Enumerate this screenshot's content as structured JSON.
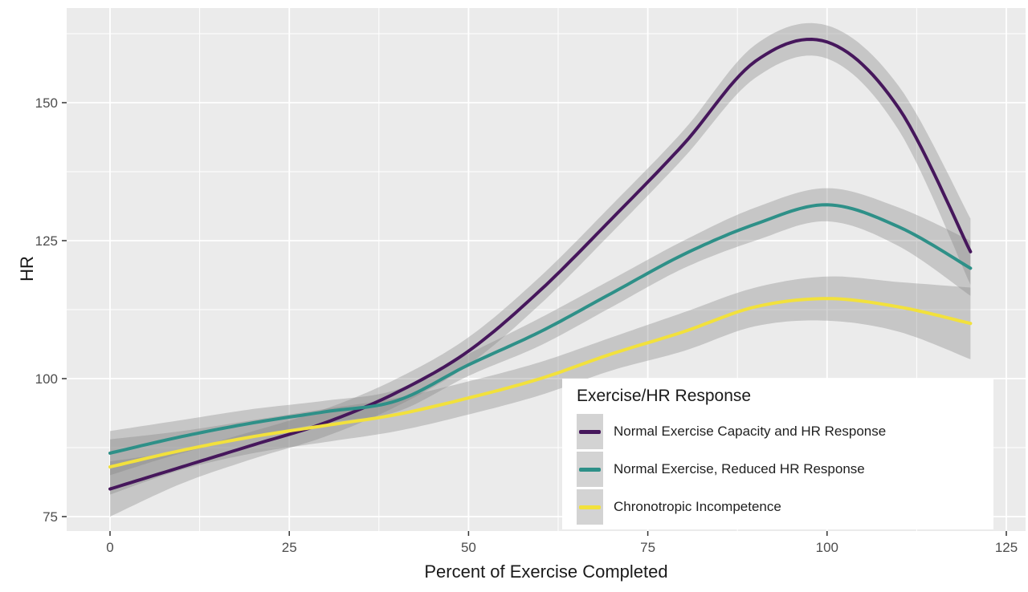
{
  "chart_data": {
    "type": "line",
    "title": "",
    "xlabel": "Percent of Exercise Completed",
    "ylabel": "HR",
    "legend_title": "Exercise/HR Response",
    "legend_position": "inside-bottom-right",
    "grid": true,
    "x_ticks": [
      0,
      25,
      50,
      75,
      100,
      125
    ],
    "y_ticks": [
      75,
      100,
      125,
      150
    ],
    "x_minor_ticks": [
      12.5,
      37.5,
      62.5,
      87.5,
      112.5
    ],
    "y_minor_ticks": [
      87.5,
      112.5,
      137.5,
      162.5
    ],
    "xlim": [
      -6,
      127.5
    ],
    "ylim": [
      72.5,
      167
    ],
    "x": [
      0,
      10,
      20,
      30,
      40,
      50,
      60,
      70,
      80,
      90,
      100,
      110,
      120
    ],
    "series": [
      {
        "name": "Normal Exercise Capacity and HR Response",
        "color": "#46175c",
        "values": [
          80,
          84,
          88,
          92,
          97.5,
          105,
          116,
          129,
          142.5,
          157.5,
          161,
          149,
          123
        ],
        "ci_halfwidth": [
          5,
          3,
          2.5,
          2.5,
          2.5,
          2.5,
          2.5,
          2.5,
          2.5,
          3,
          3,
          4,
          6
        ],
        "peak": {
          "x": 98,
          "y": 161.5
        }
      },
      {
        "name": "Normal Exercise, Reduced HR Response",
        "color": "#2e9088",
        "values": [
          86.5,
          89.5,
          92,
          94,
          96,
          102.5,
          108.5,
          115.5,
          122.5,
          128,
          131.5,
          127.5,
          120
        ],
        "ci_halfwidth": [
          4,
          3,
          2.5,
          2,
          2,
          2,
          2.5,
          2.5,
          2.5,
          3,
          3,
          3.5,
          5
        ],
        "peak": {
          "x": 100,
          "y": 131.5
        }
      },
      {
        "name": "Chronotropic Incompetence",
        "color": "#f2e13c",
        "values": [
          84,
          87,
          89.5,
          91.5,
          93.5,
          96.5,
          100,
          104.5,
          108.5,
          113,
          114.5,
          113,
          110
        ],
        "ci_halfwidth": [
          5,
          3.5,
          3,
          3,
          3,
          3,
          3,
          3,
          3.5,
          3.5,
          4,
          4.5,
          6.5
        ],
        "peak": {
          "x": 100,
          "y": 114.5
        }
      }
    ],
    "colors": {
      "panel_background": "#ebebeb",
      "gridline": "#ffffff",
      "confidence_band": "rgba(128,128,128,0.35)",
      "tick_mark": "#333333",
      "tick_label": "#4d4d4d",
      "axis_title": "#1a1a1a"
    }
  }
}
